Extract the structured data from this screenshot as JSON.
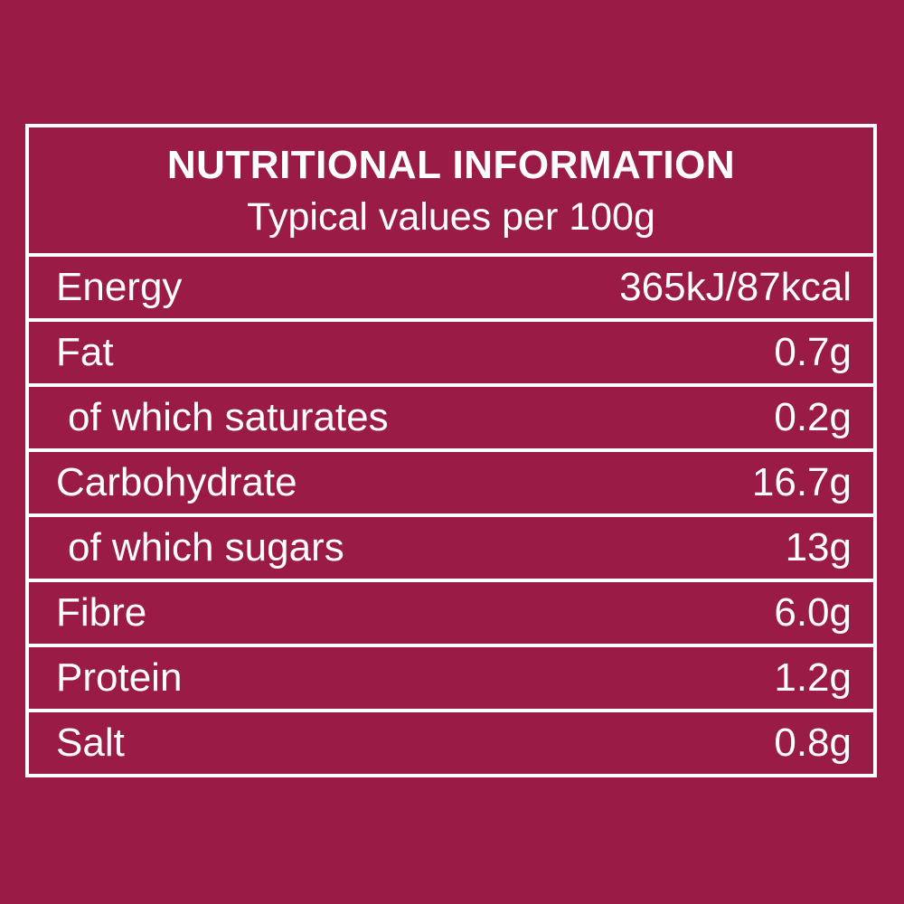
{
  "colors": {
    "background": "#9B1B47",
    "border": "#FFFFFF",
    "text": "#FFFFFF"
  },
  "label": {
    "title": "NUTRITIONAL INFORMATION",
    "subtitle": "Typical values per 100g",
    "rows": [
      {
        "label": "Energy",
        "value": "365kJ/87kcal"
      },
      {
        "label": "Fat",
        "value": "0.7g"
      },
      {
        "label": "of which saturates",
        "value": "0.2g"
      },
      {
        "label": "Carbohydrate",
        "value": "16.7g"
      },
      {
        "label": "of which sugars",
        "value": "13g"
      },
      {
        "label": "Fibre",
        "value": "6.0g"
      },
      {
        "label": "Protein",
        "value": "1.2g"
      },
      {
        "label": "Salt",
        "value": "0.8g"
      }
    ]
  }
}
